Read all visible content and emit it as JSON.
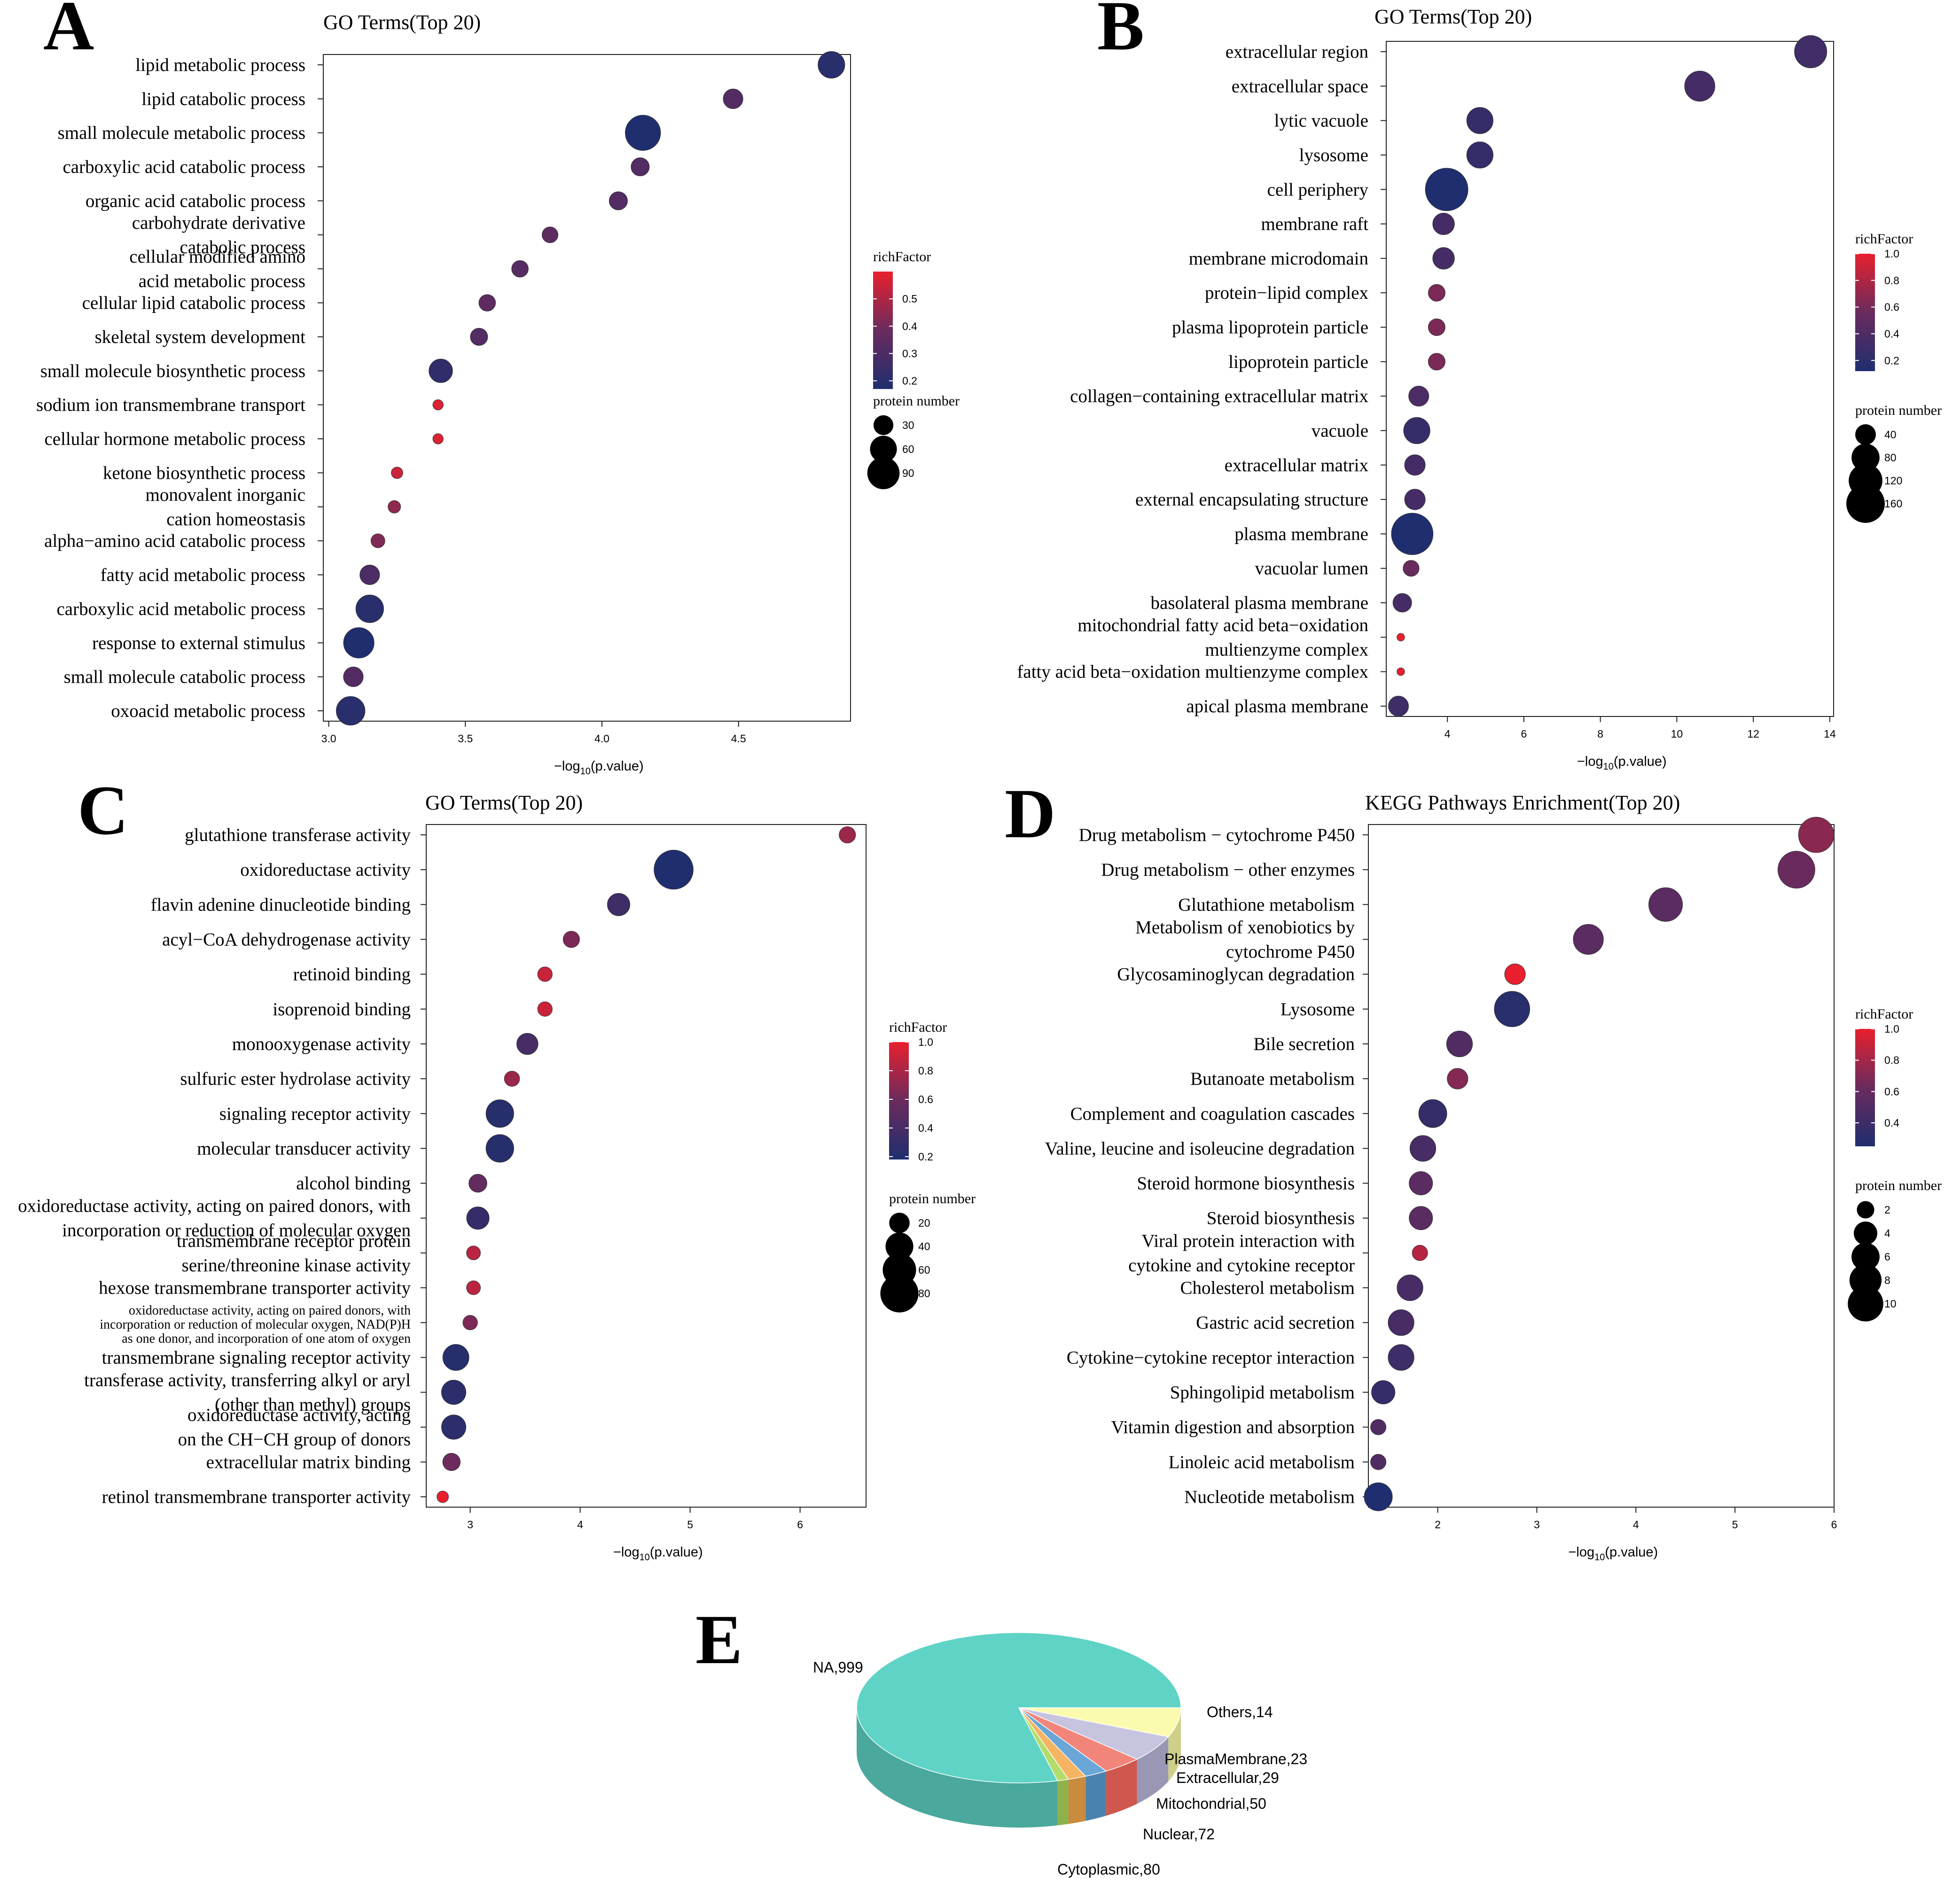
{
  "chart_data": [
    {
      "type": "scatter",
      "panel": "A",
      "title": "GO Terms(Top 20)",
      "xlabel": "−log",
      "xlabel_sub": "10",
      "xlabel_rest": "(p.value)",
      "xlim": [
        2.98,
        4.91
      ],
      "xticks": [
        "3.0",
        "3.5",
        "4.0",
        "4.5"
      ],
      "xtick_values": [
        3.0,
        3.5,
        4.0,
        4.5
      ],
      "terms": [
        {
          "label": [
            "lipid metabolic process"
          ],
          "x": 4.84,
          "richFactor": 0.2,
          "count": 60
        },
        {
          "label": [
            "lipid catabolic process"
          ],
          "x": 4.48,
          "richFactor": 0.32,
          "count": 30
        },
        {
          "label": [
            "small molecule metabolic process"
          ],
          "x": 4.15,
          "richFactor": 0.17,
          "count": 110
        },
        {
          "label": [
            "carboxylic acid catabolic process"
          ],
          "x": 4.14,
          "richFactor": 0.32,
          "count": 25
        },
        {
          "label": [
            "organic acid catabolic process"
          ],
          "x": 4.06,
          "richFactor": 0.32,
          "count": 25
        },
        {
          "label": [
            "carbohydrate derivative",
            "catabolic process"
          ],
          "x": 3.81,
          "richFactor": 0.35,
          "count": 18
        },
        {
          "label": [
            "cellular modified amino",
            "acid metabolic process"
          ],
          "x": 3.7,
          "richFactor": 0.33,
          "count": 20
        },
        {
          "label": [
            "cellular lipid catabolic process"
          ],
          "x": 3.58,
          "richFactor": 0.35,
          "count": 20
        },
        {
          "label": [
            "skeletal system development"
          ],
          "x": 3.55,
          "richFactor": 0.32,
          "count": 22
        },
        {
          "label": [
            "small molecule biosynthetic process"
          ],
          "x": 3.41,
          "richFactor": 0.22,
          "count": 45
        },
        {
          "label": [
            "sodium ion transmembrane transport"
          ],
          "x": 3.4,
          "richFactor": 0.58,
          "count": 6
        },
        {
          "label": [
            "cellular hormone metabolic process"
          ],
          "x": 3.4,
          "richFactor": 0.58,
          "count": 6
        },
        {
          "label": [
            "ketone biosynthetic process"
          ],
          "x": 3.25,
          "richFactor": 0.55,
          "count": 8
        },
        {
          "label": [
            "monovalent inorganic",
            "cation homeostasis"
          ],
          "x": 3.24,
          "richFactor": 0.45,
          "count": 10
        },
        {
          "label": [
            "alpha−amino acid catabolic process"
          ],
          "x": 3.18,
          "richFactor": 0.42,
          "count": 13
        },
        {
          "label": [
            "fatty acid metabolic process"
          ],
          "x": 3.15,
          "richFactor": 0.3,
          "count": 30
        },
        {
          "label": [
            "carboxylic acid metabolic process"
          ],
          "x": 3.15,
          "richFactor": 0.2,
          "count": 65
        },
        {
          "label": [
            "response to external stimulus"
          ],
          "x": 3.11,
          "richFactor": 0.17,
          "count": 80
        },
        {
          "label": [
            "small molecule catabolic process"
          ],
          "x": 3.09,
          "richFactor": 0.32,
          "count": 30
        },
        {
          "label": [
            "oxoacid metabolic process"
          ],
          "x": 3.08,
          "richFactor": 0.2,
          "count": 70
        }
      ],
      "color_legend": {
        "title": "richFactor",
        "ticks": [
          "0.2",
          "0.3",
          "0.4",
          "0.5"
        ],
        "tick_values": [
          0.2,
          0.3,
          0.4,
          0.5
        ],
        "range": [
          0.17,
          0.6
        ]
      },
      "size_legend": {
        "title": "protein number",
        "ticks": [
          "30",
          "60",
          "90"
        ],
        "tick_values": [
          30,
          60,
          90
        ]
      }
    },
    {
      "type": "scatter",
      "panel": "B",
      "title": "GO Terms(Top 20)",
      "xlabel": "−log",
      "xlabel_sub": "10",
      "xlabel_rest": "(p.value)",
      "xlim": [
        2.4,
        14.1
      ],
      "xticks": [
        "4",
        "6",
        "8",
        "10",
        "12",
        "14"
      ],
      "xtick_values": [
        4,
        6,
        8,
        10,
        12,
        14
      ],
      "terms": [
        {
          "label": [
            "extracellular region"
          ],
          "x": 13.5,
          "richFactor": 0.32,
          "count": 110
        },
        {
          "label": [
            "extracellular space"
          ],
          "x": 10.6,
          "richFactor": 0.35,
          "count": 95
        },
        {
          "label": [
            "lytic vacuole"
          ],
          "x": 4.85,
          "richFactor": 0.25,
          "count": 70
        },
        {
          "label": [
            "lysosome"
          ],
          "x": 4.85,
          "richFactor": 0.25,
          "count": 70
        },
        {
          "label": [
            "cell periphery"
          ],
          "x": 3.98,
          "richFactor": 0.12,
          "count": 200
        },
        {
          "label": [
            "membrane raft"
          ],
          "x": 3.9,
          "richFactor": 0.35,
          "count": 45
        },
        {
          "label": [
            "membrane microdomain"
          ],
          "x": 3.9,
          "richFactor": 0.35,
          "count": 45
        },
        {
          "label": [
            "protein−lipid complex"
          ],
          "x": 3.72,
          "richFactor": 0.62,
          "count": 25
        },
        {
          "label": [
            "plasma lipoprotein particle"
          ],
          "x": 3.72,
          "richFactor": 0.62,
          "count": 25
        },
        {
          "label": [
            "lipoprotein particle"
          ],
          "x": 3.72,
          "richFactor": 0.62,
          "count": 25
        },
        {
          "label": [
            "collagen−containing extracellular matrix"
          ],
          "x": 3.25,
          "richFactor": 0.38,
          "count": 38
        },
        {
          "label": [
            "vacuole"
          ],
          "x": 3.2,
          "richFactor": 0.25,
          "count": 70
        },
        {
          "label": [
            "extracellular matrix"
          ],
          "x": 3.15,
          "richFactor": 0.35,
          "count": 40
        },
        {
          "label": [
            "external encapsulating structure"
          ],
          "x": 3.15,
          "richFactor": 0.35,
          "count": 40
        },
        {
          "label": [
            "plasma membrane"
          ],
          "x": 3.08,
          "richFactor": 0.12,
          "count": 190
        },
        {
          "label": [
            "vacuolar lumen"
          ],
          "x": 3.05,
          "richFactor": 0.55,
          "count": 22
        },
        {
          "label": [
            "basolateral plasma membrane"
          ],
          "x": 2.82,
          "richFactor": 0.35,
          "count": 32
        },
        {
          "label": [
            "mitochondrial fatty acid beta−oxidation",
            "multienzyme complex"
          ],
          "x": 2.78,
          "richFactor": 1.0,
          "count": 3
        },
        {
          "label": [
            "fatty acid beta−oxidation multienzyme complex"
          ],
          "x": 2.78,
          "richFactor": 1.0,
          "count": 3
        },
        {
          "label": [
            "apical plasma membrane"
          ],
          "x": 2.72,
          "richFactor": 0.3,
          "count": 38
        }
      ],
      "color_legend": {
        "title": "richFactor",
        "ticks": [
          "0.2",
          "0.4",
          "0.6",
          "0.8",
          "1.0"
        ],
        "tick_values": [
          0.2,
          0.4,
          0.6,
          0.8,
          1.0
        ],
        "range": [
          0.12,
          1.0
        ]
      },
      "size_legend": {
        "title": "protein number",
        "ticks": [
          "40",
          "80",
          "120",
          "160"
        ],
        "tick_values": [
          40,
          80,
          120,
          160
        ]
      }
    },
    {
      "type": "scatter",
      "panel": "C",
      "title": "GO Terms(Top 20)",
      "xlabel": "−log",
      "xlabel_sub": "10",
      "xlabel_rest": "(p.value)",
      "xlim": [
        2.6,
        6.6
      ],
      "xticks": [
        "3",
        "4",
        "5",
        "6"
      ],
      "xtick_values": [
        3,
        4,
        5,
        6
      ],
      "terms": [
        {
          "label": [
            "glutathione transferase activity"
          ],
          "x": 6.43,
          "richFactor": 0.75,
          "count": 12
        },
        {
          "label": [
            "oxidoreductase activity"
          ],
          "x": 4.85,
          "richFactor": 0.18,
          "count": 85
        },
        {
          "label": [
            "flavin adenine dinucleotide binding"
          ],
          "x": 4.35,
          "richFactor": 0.35,
          "count": 25
        },
        {
          "label": [
            "acyl−CoA dehydrogenase activity"
          ],
          "x": 3.92,
          "richFactor": 0.65,
          "count": 12
        },
        {
          "label": [
            "retinoid binding"
          ],
          "x": 3.68,
          "richFactor": 0.9,
          "count": 9
        },
        {
          "label": [
            "isoprenoid binding"
          ],
          "x": 3.68,
          "richFactor": 0.9,
          "count": 9
        },
        {
          "label": [
            "monooxygenase activity"
          ],
          "x": 3.52,
          "richFactor": 0.4,
          "count": 22
        },
        {
          "label": [
            "sulfuric ester hydrolase activity"
          ],
          "x": 3.38,
          "richFactor": 0.75,
          "count": 10
        },
        {
          "label": [
            "signaling receptor activity"
          ],
          "x": 3.27,
          "richFactor": 0.22,
          "count": 40
        },
        {
          "label": [
            "molecular transducer activity"
          ],
          "x": 3.27,
          "richFactor": 0.22,
          "count": 40
        },
        {
          "label": [
            "alcohol binding"
          ],
          "x": 3.07,
          "richFactor": 0.55,
          "count": 15
        },
        {
          "label": [
            "oxidoreductase activity, acting on paired donors, with",
            "incorporation or reduction of molecular oxygen"
          ],
          "x": 3.07,
          "richFactor": 0.3,
          "count": 25
        },
        {
          "label": [
            "transmembrane receptor protein",
            "serine/threonine kinase activity"
          ],
          "x": 3.03,
          "richFactor": 0.85,
          "count": 8
        },
        {
          "label": [
            "hexose transmembrane transporter activity"
          ],
          "x": 3.03,
          "richFactor": 0.85,
          "count": 8
        },
        {
          "label": [
            "oxidoreductase activity, acting on paired donors, with",
            "incorporation or reduction of molecular oxygen, NAD(P)H",
            "as one donor, and incorporation of one atom of oxygen"
          ],
          "x": 3.0,
          "richFactor": 0.65,
          "count": 9
        },
        {
          "label": [
            "transmembrane signaling receptor activity"
          ],
          "x": 2.87,
          "richFactor": 0.22,
          "count": 35
        },
        {
          "label": [
            "transferase activity, transferring alkyl or aryl",
            "(other than methyl) groups"
          ],
          "x": 2.85,
          "richFactor": 0.25,
          "count": 30
        },
        {
          "label": [
            "oxidoreductase activity, acting",
            "on the CH−CH group of donors"
          ],
          "x": 2.85,
          "richFactor": 0.25,
          "count": 30
        },
        {
          "label": [
            "extracellular matrix binding"
          ],
          "x": 2.83,
          "richFactor": 0.6,
          "count": 14
        },
        {
          "label": [
            "retinol transmembrane transporter activity"
          ],
          "x": 2.75,
          "richFactor": 1.0,
          "count": 5
        }
      ],
      "color_legend": {
        "title": "richFactor",
        "ticks": [
          "0.2",
          "0.4",
          "0.6",
          "0.8",
          "1.0"
        ],
        "tick_values": [
          0.2,
          0.4,
          0.6,
          0.8,
          1.0
        ],
        "range": [
          0.18,
          1.0
        ]
      },
      "size_legend": {
        "title": "protein number",
        "ticks": [
          "20",
          "40",
          "60",
          "80"
        ],
        "tick_values": [
          20,
          40,
          60,
          80
        ]
      }
    },
    {
      "type": "scatter",
      "panel": "D",
      "title": "KEGG Pathways Enrichment(Top 20)",
      "xlabel": "−log",
      "xlabel_sub": "10",
      "xlabel_rest": "(p.value)",
      "xlim": [
        1.3,
        6.0
      ],
      "xticks": [
        "2",
        "3",
        "4",
        "5",
        "6"
      ],
      "xtick_values": [
        2,
        3,
        4,
        5,
        6
      ],
      "terms": [
        {
          "label": [
            "Drug metabolism − cytochrome P450"
          ],
          "x": 5.82,
          "richFactor": 0.72,
          "count": 10
        },
        {
          "label": [
            "Drug metabolism − other enzymes"
          ],
          "x": 5.62,
          "richFactor": 0.62,
          "count": 11
        },
        {
          "label": [
            "Glutathione metabolism"
          ],
          "x": 4.3,
          "richFactor": 0.55,
          "count": 9
        },
        {
          "label": [
            "Metabolism of xenobiotics by",
            "cytochrome P450"
          ],
          "x": 3.52,
          "richFactor": 0.55,
          "count": 7
        },
        {
          "label": [
            "Glycosaminoglycan degradation"
          ],
          "x": 2.78,
          "richFactor": 1.0,
          "count": 3
        },
        {
          "label": [
            "Lysosome"
          ],
          "x": 2.75,
          "richFactor": 0.3,
          "count": 10
        },
        {
          "label": [
            "Bile secretion"
          ],
          "x": 2.22,
          "richFactor": 0.5,
          "count": 5
        },
        {
          "label": [
            "Butanoate metabolism"
          ],
          "x": 2.2,
          "richFactor": 0.7,
          "count": 3
        },
        {
          "label": [
            "Complement and coagulation cascades"
          ],
          "x": 1.95,
          "richFactor": 0.35,
          "count": 6
        },
        {
          "label": [
            "Valine, leucine and isoleucine degradation"
          ],
          "x": 1.85,
          "richFactor": 0.45,
          "count": 5
        },
        {
          "label": [
            "Steroid hormone biosynthesis"
          ],
          "x": 1.83,
          "richFactor": 0.55,
          "count": 4
        },
        {
          "label": [
            "Steroid biosynthesis"
          ],
          "x": 1.83,
          "richFactor": 0.55,
          "count": 4
        },
        {
          "label": [
            "Viral protein interaction with",
            "cytokine and cytokine receptor"
          ],
          "x": 1.82,
          "richFactor": 0.85,
          "count": 1.5
        },
        {
          "label": [
            "Cholesterol metabolism"
          ],
          "x": 1.72,
          "richFactor": 0.45,
          "count": 5
        },
        {
          "label": [
            "Gastric acid secretion"
          ],
          "x": 1.63,
          "richFactor": 0.45,
          "count": 5
        },
        {
          "label": [
            "Cytokine−cytokine receptor interaction"
          ],
          "x": 1.63,
          "richFactor": 0.4,
          "count": 5
        },
        {
          "label": [
            "Sphingolipid metabolism"
          ],
          "x": 1.45,
          "richFactor": 0.35,
          "count": 4
        },
        {
          "label": [
            "Vitamin digestion and absorption"
          ],
          "x": 1.4,
          "richFactor": 0.5,
          "count": 1.5
        },
        {
          "label": [
            "Linoleic acid metabolism"
          ],
          "x": 1.4,
          "richFactor": 0.5,
          "count": 1.5
        },
        {
          "label": [
            "Nucleotide metabolism"
          ],
          "x": 1.4,
          "richFactor": 0.25,
          "count": 6
        }
      ],
      "color_legend": {
        "title": "richFactor",
        "ticks": [
          "0.4",
          "0.6",
          "0.8",
          "1.0"
        ],
        "tick_values": [
          0.4,
          0.6,
          0.8,
          1.0
        ],
        "range": [
          0.25,
          1.0
        ]
      },
      "size_legend": {
        "title": "protein number",
        "ticks": [
          "2",
          "4",
          "6",
          "8",
          "10"
        ],
        "tick_values": [
          2,
          4,
          6,
          8,
          10
        ]
      }
    },
    {
      "type": "pie",
      "panel": "E",
      "slices": [
        {
          "name": "NA",
          "value": 999,
          "label": "NA,999",
          "color": "#5fd4c6",
          "side": "#4aa89c"
        },
        {
          "name": "Cytoplasmic",
          "value": 80,
          "label": "Cytoplasmic,80",
          "color": "#fbfbaf",
          "side": "#cfcf8a"
        },
        {
          "name": "Nuclear",
          "value": 72,
          "label": "Nuclear,72",
          "color": "#c7c4e0",
          "side": "#9a97b5"
        },
        {
          "name": "Mitochondrial",
          "value": 50,
          "label": "Mitochondrial,50",
          "color": "#f2857a",
          "side": "#d0574d"
        },
        {
          "name": "Extracellular",
          "value": 29,
          "label": "Extracellular,29",
          "color": "#6aa6d6",
          "side": "#4b82ad"
        },
        {
          "name": "PlasmaMembrane",
          "value": 23,
          "label": "PlasmaMembrane,23",
          "color": "#f5b461",
          "side": "#c98b3d"
        },
        {
          "name": "Others",
          "value": 14,
          "label": "Others,14",
          "color": "#b4dc6a",
          "side": "#8fb14c"
        }
      ]
    }
  ],
  "panel_letters": [
    "A",
    "B",
    "C",
    "D",
    "E"
  ],
  "colors": {
    "high": "#e8202e",
    "mid": "#6a2b5e",
    "low": "#1f2e6e"
  }
}
